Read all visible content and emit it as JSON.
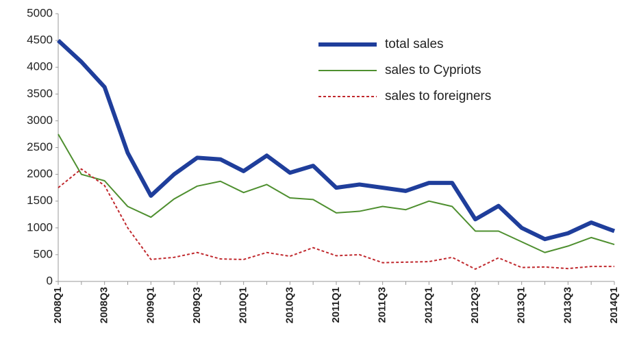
{
  "chart_data": {
    "type": "line",
    "categories": [
      "2008Q1",
      null,
      "2008Q3",
      null,
      "2009Q1",
      null,
      "2009Q3",
      null,
      "2010Q1",
      null,
      "2010Q3",
      null,
      "2011Q1",
      null,
      "2011Q3",
      null,
      "2012Q1",
      null,
      "2012Q3",
      null,
      "2013Q1",
      null,
      "2013Q3",
      null,
      "2014Q1"
    ],
    "series": [
      {
        "name": "total sales",
        "color": "#1f3e9b",
        "values": [
          4500,
          4100,
          3630,
          2400,
          1600,
          2000,
          2310,
          2280,
          2060,
          2350,
          2030,
          2160,
          1750,
          1810,
          1750,
          1690,
          1840,
          1840,
          1160,
          1410,
          1000,
          790,
          900,
          1100,
          940
        ]
      },
      {
        "name": "sales to Cypriots",
        "color": "#4e8f2f",
        "values": [
          2750,
          2000,
          1880,
          1400,
          1200,
          1540,
          1780,
          1870,
          1660,
          1810,
          1560,
          1530,
          1280,
          1310,
          1400,
          1340,
          1500,
          1400,
          940,
          940,
          740,
          540,
          660,
          820,
          690
        ]
      },
      {
        "name": "sales to foreigners",
        "color": "#c0282d",
        "dashed": true,
        "values": [
          1750,
          2100,
          1790,
          1000,
          410,
          450,
          540,
          420,
          410,
          540,
          470,
          630,
          480,
          500,
          350,
          360,
          370,
          450,
          230,
          440,
          260,
          270,
          240,
          280,
          280
        ]
      }
    ],
    "ylim": [
      0,
      5000
    ],
    "yticks": [
      0,
      500,
      1000,
      1500,
      2000,
      2500,
      3000,
      3500,
      4000,
      4500,
      5000
    ],
    "grid": false,
    "legend": "upper right"
  }
}
